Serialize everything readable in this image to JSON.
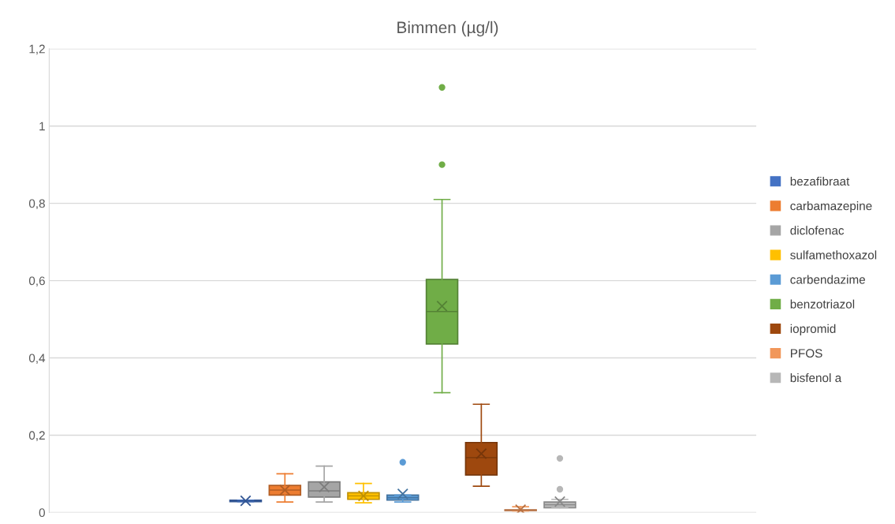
{
  "chart_data": {
    "type": "box",
    "title": "Bimmen (µg/l)",
    "categories": [
      null
    ],
    "ylim": [
      0,
      1.2
    ],
    "yticks": [
      {
        "value": 0,
        "label": "0"
      },
      {
        "value": 0.2,
        "label": "0,2"
      },
      {
        "value": 0.4,
        "label": "0,4"
      },
      {
        "value": 0.6,
        "label": "0,6"
      },
      {
        "value": 0.8,
        "label": "0,8"
      },
      {
        "value": 1,
        "label": "1"
      },
      {
        "value": 1.2,
        "label": "1,2"
      }
    ],
    "grid": "y",
    "legend": "right",
    "marker": "circle",
    "series": [
      {
        "name": "bezafibraat",
        "color": "#4472c4",
        "boxes": [
          {
            "low": 0.028,
            "q1": 0.028,
            "median": 0.03,
            "q3": 0.032,
            "high": 0.032,
            "mean": 0.03
          }
        ]
      },
      {
        "name": "carbamazepine",
        "color": "#ed7d31",
        "boxes": [
          {
            "low": 0.027,
            "q1": 0.045,
            "median": 0.058,
            "q3": 0.07,
            "high": 0.1,
            "mean": 0.058
          }
        ]
      },
      {
        "name": "diclofenac",
        "color": "#a5a5a5",
        "boxes": [
          {
            "low": 0.027,
            "q1": 0.04,
            "median": 0.056,
            "q3": 0.079,
            "high": 0.12,
            "mean": 0.066
          }
        ]
      },
      {
        "name": "sulfamethoxazol",
        "color": "#ffc000",
        "boxes": [
          {
            "low": 0.025,
            "q1": 0.034,
            "median": 0.043,
            "q3": 0.051,
            "high": 0.075,
            "mean": 0.043
          }
        ]
      },
      {
        "name": "carbendazime",
        "color": "#5b9bd5",
        "boxes": [
          {
            "low": 0.027,
            "q1": 0.032,
            "median": 0.038,
            "q3": 0.045,
            "high": 0.045,
            "mean": 0.048,
            "outliers": [
              0.13
            ]
          }
        ]
      },
      {
        "name": "benzotriazol",
        "color": "#70ad47",
        "boxes": [
          {
            "low": 0.31,
            "q1": 0.436,
            "median": 0.52,
            "q3": 0.603,
            "high": 0.81,
            "mean": 0.534,
            "outliers": [
              0.9,
              1.1
            ]
          }
        ]
      },
      {
        "name": "iopromid",
        "color": "#9e480e",
        "boxes": [
          {
            "low": 0.068,
            "q1": 0.097,
            "median": 0.142,
            "q3": 0.181,
            "high": 0.28,
            "mean": 0.152
          }
        ]
      },
      {
        "name": "PFOS",
        "color": "#f1975a",
        "boxes": [
          {
            "low": 0.004,
            "q1": 0.005,
            "median": 0.006,
            "q3": 0.007,
            "high": 0.015,
            "mean": 0.007
          }
        ]
      },
      {
        "name": "bisfenol a",
        "color": "#b7b7b7",
        "boxes": [
          {
            "low": 0.012,
            "q1": 0.012,
            "median": 0.02,
            "q3": 0.027,
            "high": 0.034,
            "mean": 0.028,
            "outliers": [
              0.06,
              0.14
            ]
          }
        ]
      }
    ]
  }
}
